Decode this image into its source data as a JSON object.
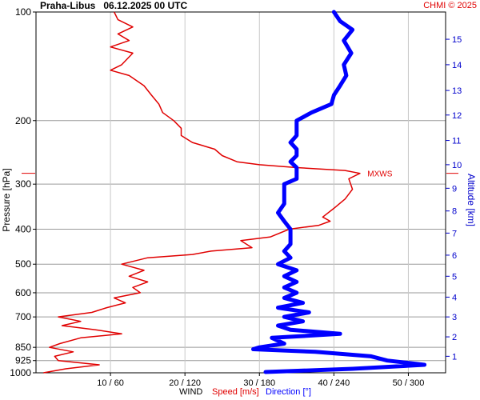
{
  "header": {
    "station": "Praha-Libus",
    "datetime": "06.12.2025 00 UTC",
    "credit": "CHMI © 2025"
  },
  "footer": {
    "wind": "WIND",
    "speed": "Speed [m/s]",
    "direction": "Direction [°]"
  },
  "colors": {
    "speed": "#e00000",
    "direction": "#0000ff",
    "grid": "#999999",
    "altitude_axis": "#0000cc"
  },
  "chart_data": {
    "type": "line",
    "y_axis": {
      "label": "Pressure [hPa]",
      "scale": "log",
      "range": [
        1000,
        100
      ],
      "ticks": [
        100,
        200,
        300,
        400,
        500,
        600,
        700,
        850,
        925,
        1000
      ]
    },
    "x_axis": {
      "speed_range": [
        0,
        55
      ],
      "direction_range": [
        0,
        330
      ],
      "ticks": [
        10,
        20,
        30,
        40,
        50
      ],
      "tick_labels": [
        "10 / 60",
        "20 / 120",
        "30 / 180",
        "40 / 240",
        "50 / 300"
      ]
    },
    "altitude_axis": {
      "label": "Altitude [km]",
      "ticks": [
        {
          "km": 1,
          "p": 900
        },
        {
          "km": 2,
          "p": 795
        },
        {
          "km": 3,
          "p": 700
        },
        {
          "km": 4,
          "p": 617
        },
        {
          "km": 5,
          "p": 540
        },
        {
          "km": 6,
          "p": 472
        },
        {
          "km": 7,
          "p": 410
        },
        {
          "km": 8,
          "p": 356
        },
        {
          "km": 9,
          "p": 308
        },
        {
          "km": 10,
          "p": 265
        },
        {
          "km": 11,
          "p": 227
        },
        {
          "km": 12,
          "p": 193
        },
        {
          "km": 13,
          "p": 165
        },
        {
          "km": 14,
          "p": 140
        },
        {
          "km": 15,
          "p": 119
        }
      ]
    },
    "annotation": {
      "text": "MXWS",
      "p": 280
    },
    "series": [
      {
        "name": "Speed [m/s]",
        "values": [
          [
            1000,
            1.0
          ],
          [
            975,
            4.0
          ],
          [
            950,
            8.5
          ],
          [
            925,
            3.0
          ],
          [
            900,
            2.5
          ],
          [
            875,
            5.0
          ],
          [
            850,
            1.8
          ],
          [
            830,
            3.2
          ],
          [
            800,
            6.0
          ],
          [
            780,
            11.5
          ],
          [
            760,
            8.0
          ],
          [
            740,
            3.5
          ],
          [
            720,
            6.0
          ],
          [
            700,
            3.0
          ],
          [
            680,
            7.5
          ],
          [
            660,
            9.5
          ],
          [
            640,
            12.0
          ],
          [
            620,
            10.5
          ],
          [
            600,
            14.0
          ],
          [
            580,
            13.0
          ],
          [
            560,
            15.0
          ],
          [
            540,
            12.5
          ],
          [
            520,
            14.5
          ],
          [
            500,
            11.5
          ],
          [
            480,
            15.0
          ],
          [
            470,
            21.0
          ],
          [
            460,
            23.5
          ],
          [
            450,
            29.0
          ],
          [
            430,
            27.5
          ],
          [
            420,
            31.5
          ],
          [
            400,
            34.0
          ],
          [
            390,
            38.0
          ],
          [
            380,
            39.5
          ],
          [
            370,
            38.5
          ],
          [
            350,
            40.0
          ],
          [
            330,
            41.5
          ],
          [
            310,
            42.5
          ],
          [
            290,
            42.0
          ],
          [
            280,
            43.5
          ],
          [
            275,
            41.5
          ],
          [
            270,
            35.0
          ],
          [
            265,
            30.0
          ],
          [
            260,
            27.0
          ],
          [
            250,
            25.0
          ],
          [
            240,
            24.0
          ],
          [
            230,
            21.0
          ],
          [
            220,
            19.5
          ],
          [
            210,
            19.5
          ],
          [
            200,
            18.5
          ],
          [
            190,
            17.0
          ],
          [
            180,
            16.5
          ],
          [
            170,
            15.5
          ],
          [
            160,
            14.5
          ],
          [
            150,
            12.5
          ],
          [
            145,
            10.0
          ],
          [
            140,
            11.5
          ],
          [
            130,
            13.0
          ],
          [
            125,
            10.0
          ],
          [
            120,
            12.5
          ],
          [
            115,
            11.0
          ],
          [
            110,
            13.0
          ],
          [
            105,
            11.0
          ],
          [
            100,
            10.5
          ]
        ]
      },
      {
        "name": "Direction [°]",
        "values": [
          [
            995,
            185
          ],
          [
            975,
            255
          ],
          [
            950,
            313
          ],
          [
            925,
            283
          ],
          [
            900,
            270
          ],
          [
            875,
            225
          ],
          [
            860,
            175
          ],
          [
            850,
            180
          ],
          [
            830,
            200
          ],
          [
            800,
            190
          ],
          [
            780,
            245
          ],
          [
            760,
            205
          ],
          [
            740,
            195
          ],
          [
            720,
            215
          ],
          [
            700,
            200
          ],
          [
            680,
            220
          ],
          [
            660,
            195
          ],
          [
            640,
            215
          ],
          [
            620,
            200
          ],
          [
            600,
            210
          ],
          [
            580,
            200
          ],
          [
            560,
            210
          ],
          [
            540,
            200
          ],
          [
            520,
            210
          ],
          [
            500,
            195
          ],
          [
            480,
            205
          ],
          [
            460,
            200
          ],
          [
            440,
            205
          ],
          [
            420,
            205
          ],
          [
            400,
            205
          ],
          [
            380,
            200
          ],
          [
            360,
            195
          ],
          [
            340,
            200
          ],
          [
            320,
            200
          ],
          [
            300,
            200
          ],
          [
            290,
            210
          ],
          [
            280,
            210
          ],
          [
            270,
            210
          ],
          [
            260,
            205
          ],
          [
            250,
            210
          ],
          [
            240,
            210
          ],
          [
            230,
            205
          ],
          [
            220,
            210
          ],
          [
            210,
            210
          ],
          [
            200,
            210
          ],
          [
            190,
            222
          ],
          [
            180,
            238
          ],
          [
            170,
            240
          ],
          [
            160,
            245
          ],
          [
            150,
            250
          ],
          [
            140,
            248
          ],
          [
            130,
            254
          ],
          [
            120,
            248
          ],
          [
            112,
            255
          ],
          [
            106,
            245
          ],
          [
            100,
            240
          ]
        ]
      }
    ]
  }
}
